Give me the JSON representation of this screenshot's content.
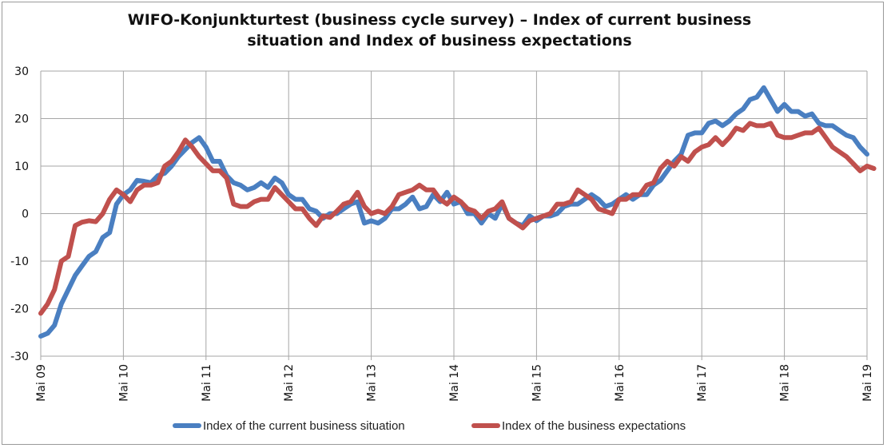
{
  "chart_data": {
    "type": "line",
    "title_lines": [
      "WIFO-Konjunkturtest (business cycle survey) – Index of current business",
      "situation and Index of business expectations"
    ],
    "ylim": [
      -30,
      30
    ],
    "yticks": [
      30,
      20,
      10,
      0,
      -10,
      -20,
      -30
    ],
    "xticks": [
      "Mai 09",
      "Mai 10",
      "Mai 11",
      "Mai 12",
      "Mai 13",
      "Mai 14",
      "Mai 15",
      "Mai 16",
      "Mai 17",
      "Mai 18",
      "Mai 19"
    ],
    "grid": true,
    "legend_position": "bottom",
    "series": [
      {
        "name": "Index of the current business situation",
        "color": "#4a7fc1",
        "points": [
          [
            "2009-05",
            -25.8
          ],
          [
            "2009-06",
            -25.2
          ],
          [
            "2009-07",
            -23.5
          ],
          [
            "2009-08",
            -19
          ],
          [
            "2009-09",
            -16
          ],
          [
            "2009-10",
            -13
          ],
          [
            "2009-11",
            -11
          ],
          [
            "2009-12",
            -9
          ],
          [
            "2010-01",
            -8
          ],
          [
            "2010-02",
            -5
          ],
          [
            "2010-03",
            -4
          ],
          [
            "2010-04",
            2
          ],
          [
            "2010-05",
            4
          ],
          [
            "2010-06",
            5
          ],
          [
            "2010-07",
            7
          ],
          [
            "2010-08",
            6.8
          ],
          [
            "2010-09",
            6.5
          ],
          [
            "2010-10",
            8
          ],
          [
            "2010-11",
            8.5
          ],
          [
            "2010-12",
            10
          ],
          [
            "2011-01",
            12
          ],
          [
            "2011-02",
            13.5
          ],
          [
            "2011-03",
            15
          ],
          [
            "2011-04",
            16
          ],
          [
            "2011-05",
            14
          ],
          [
            "2011-06",
            11
          ],
          [
            "2011-07",
            11
          ],
          [
            "2011-08",
            8
          ],
          [
            "2011-09",
            6.5
          ],
          [
            "2011-10",
            6
          ],
          [
            "2011-11",
            5
          ],
          [
            "2011-12",
            5.5
          ],
          [
            "2012-01",
            6.5
          ],
          [
            "2012-02",
            5.5
          ],
          [
            "2012-03",
            7.5
          ],
          [
            "2012-04",
            6.5
          ],
          [
            "2012-05",
            4
          ],
          [
            "2012-06",
            3
          ],
          [
            "2012-07",
            3
          ],
          [
            "2012-08",
            1
          ],
          [
            "2012-09",
            0.5
          ],
          [
            "2012-10",
            -1
          ],
          [
            "2012-11",
            0
          ],
          [
            "2012-12",
            0
          ],
          [
            "2013-01",
            1
          ],
          [
            "2013-02",
            2
          ],
          [
            "2013-03",
            2.5
          ],
          [
            "2013-04",
            -2
          ],
          [
            "2013-05",
            -1.5
          ],
          [
            "2013-06",
            -2
          ],
          [
            "2013-07",
            -1
          ],
          [
            "2013-08",
            1
          ],
          [
            "2013-09",
            1
          ],
          [
            "2013-10",
            2
          ],
          [
            "2013-11",
            3.5
          ],
          [
            "2013-12",
            1
          ],
          [
            "2014-01",
            1.5
          ],
          [
            "2014-02",
            4
          ],
          [
            "2014-03",
            2.5
          ],
          [
            "2014-04",
            4.5
          ],
          [
            "2014-05",
            2
          ],
          [
            "2014-06",
            2.5
          ],
          [
            "2014-07",
            0
          ],
          [
            "2014-08",
            0
          ],
          [
            "2014-09",
            -2
          ],
          [
            "2014-10",
            0
          ],
          [
            "2014-11",
            -1
          ],
          [
            "2014-12",
            2
          ],
          [
            "2015-01",
            -1
          ],
          [
            "2015-02",
            -2
          ],
          [
            "2015-03",
            -2.5
          ],
          [
            "2015-04",
            -0.5
          ],
          [
            "2015-05",
            -1.5
          ],
          [
            "2015-06",
            -0.5
          ],
          [
            "2015-07",
            -0.5
          ],
          [
            "2015-08",
            0
          ],
          [
            "2015-09",
            1.5
          ],
          [
            "2015-10",
            2
          ],
          [
            "2015-11",
            2
          ],
          [
            "2015-12",
            3
          ],
          [
            "2016-01",
            4
          ],
          [
            "2016-02",
            3
          ],
          [
            "2016-03",
            1.5
          ],
          [
            "2016-04",
            2
          ],
          [
            "2016-05",
            3
          ],
          [
            "2016-06",
            4
          ],
          [
            "2016-07",
            3
          ],
          [
            "2016-08",
            4
          ],
          [
            "2016-09",
            4
          ],
          [
            "2016-10",
            6
          ],
          [
            "2016-11",
            7
          ],
          [
            "2016-12",
            9
          ],
          [
            "2017-01",
            11
          ],
          [
            "2017-02",
            12.5
          ],
          [
            "2017-03",
            16.5
          ],
          [
            "2017-04",
            17
          ],
          [
            "2017-05",
            17
          ],
          [
            "2017-06",
            19
          ],
          [
            "2017-07",
            19.5
          ],
          [
            "2017-08",
            18.5
          ],
          [
            "2017-09",
            19.5
          ],
          [
            "2017-10",
            21
          ],
          [
            "2017-11",
            22
          ],
          [
            "2017-12",
            24
          ],
          [
            "2018-01",
            24.5
          ],
          [
            "2018-02",
            26.5
          ],
          [
            "2018-03",
            24
          ],
          [
            "2018-04",
            21.5
          ],
          [
            "2018-05",
            23
          ],
          [
            "2018-06",
            21.5
          ],
          [
            "2018-07",
            21.5
          ],
          [
            "2018-08",
            20.5
          ],
          [
            "2018-09",
            21
          ],
          [
            "2018-10",
            19
          ],
          [
            "2018-11",
            18.5
          ],
          [
            "2018-12",
            18.5
          ],
          [
            "2019-01",
            17.5
          ],
          [
            "2019-02",
            16.5
          ],
          [
            "2019-03",
            16
          ],
          [
            "2019-04",
            14
          ],
          [
            "2019-05",
            12.5
          ]
        ]
      },
      {
        "name": "Index of the business expectations",
        "color": "#c0504d",
        "points": [
          [
            "2009-05",
            -21
          ],
          [
            "2009-06",
            -19
          ],
          [
            "2009-07",
            -16
          ],
          [
            "2009-08",
            -10
          ],
          [
            "2009-09",
            -9
          ],
          [
            "2009-10",
            -2.5
          ],
          [
            "2009-11",
            -1.8
          ],
          [
            "2009-12",
            -1.5
          ],
          [
            "2010-01",
            -1.7
          ],
          [
            "2010-02",
            0
          ],
          [
            "2010-03",
            3
          ],
          [
            "2010-04",
            5
          ],
          [
            "2010-05",
            4
          ],
          [
            "2010-06",
            2.5
          ],
          [
            "2010-07",
            5
          ],
          [
            "2010-08",
            6
          ],
          [
            "2010-09",
            6
          ],
          [
            "2010-10",
            6.5
          ],
          [
            "2010-11",
            10
          ],
          [
            "2010-12",
            11
          ],
          [
            "2011-01",
            13
          ],
          [
            "2011-02",
            15.5
          ],
          [
            "2011-03",
            14
          ],
          [
            "2011-04",
            12
          ],
          [
            "2011-05",
            10.5
          ],
          [
            "2011-06",
            9
          ],
          [
            "2011-07",
            9
          ],
          [
            "2011-08",
            7.5
          ],
          [
            "2011-09",
            2
          ],
          [
            "2011-10",
            1.5
          ],
          [
            "2011-11",
            1.5
          ],
          [
            "2011-12",
            2.5
          ],
          [
            "2012-01",
            3
          ],
          [
            "2012-02",
            3
          ],
          [
            "2012-03",
            5.5
          ],
          [
            "2012-04",
            4
          ],
          [
            "2012-05",
            2.5
          ],
          [
            "2012-06",
            1
          ],
          [
            "2012-07",
            1
          ],
          [
            "2012-08",
            -1
          ],
          [
            "2012-09",
            -2.5
          ],
          [
            "2012-10",
            -0.5
          ],
          [
            "2012-11",
            -0.8
          ],
          [
            "2012-12",
            0.5
          ],
          [
            "2013-01",
            2
          ],
          [
            "2013-02",
            2.5
          ],
          [
            "2013-03",
            4.5
          ],
          [
            "2013-04",
            1.5
          ],
          [
            "2013-05",
            0
          ],
          [
            "2013-06",
            0.5
          ],
          [
            "2013-07",
            0
          ],
          [
            "2013-08",
            1.5
          ],
          [
            "2013-09",
            4
          ],
          [
            "2013-10",
            4.5
          ],
          [
            "2013-11",
            5
          ],
          [
            "2013-12",
            6
          ],
          [
            "2014-01",
            5
          ],
          [
            "2014-02",
            5
          ],
          [
            "2014-03",
            3
          ],
          [
            "2014-04",
            2
          ],
          [
            "2014-05",
            3.5
          ],
          [
            "2014-06",
            2.5
          ],
          [
            "2014-07",
            1
          ],
          [
            "2014-08",
            0.5
          ],
          [
            "2014-09",
            -1
          ],
          [
            "2014-10",
            0.5
          ],
          [
            "2014-11",
            1
          ],
          [
            "2014-12",
            2.5
          ],
          [
            "2015-01",
            -1
          ],
          [
            "2015-02",
            -2
          ],
          [
            "2015-03",
            -3
          ],
          [
            "2015-04",
            -1.5
          ],
          [
            "2015-05",
            -1
          ],
          [
            "2015-06",
            -0.5
          ],
          [
            "2015-07",
            0
          ],
          [
            "2015-08",
            2
          ],
          [
            "2015-09",
            2
          ],
          [
            "2015-10",
            2.5
          ],
          [
            "2015-11",
            5
          ],
          [
            "2015-12",
            4
          ],
          [
            "2016-01",
            3
          ],
          [
            "2016-02",
            1
          ],
          [
            "2016-03",
            0.5
          ],
          [
            "2016-04",
            0
          ],
          [
            "2016-05",
            3
          ],
          [
            "2016-06",
            3
          ],
          [
            "2016-07",
            4
          ],
          [
            "2016-08",
            4
          ],
          [
            "2016-09",
            6
          ],
          [
            "2016-10",
            6.5
          ],
          [
            "2016-11",
            9.5
          ],
          [
            "2016-12",
            11
          ],
          [
            "2017-01",
            10
          ],
          [
            "2017-02",
            12
          ],
          [
            "2017-03",
            11
          ],
          [
            "2017-04",
            13
          ],
          [
            "2017-05",
            14
          ],
          [
            "2017-06",
            14.5
          ],
          [
            "2017-07",
            16
          ],
          [
            "2017-08",
            14.5
          ],
          [
            "2017-09",
            16
          ],
          [
            "2017-10",
            18
          ],
          [
            "2017-11",
            17.5
          ],
          [
            "2017-12",
            19
          ],
          [
            "2018-01",
            18.5
          ],
          [
            "2018-02",
            18.5
          ],
          [
            "2018-03",
            19
          ],
          [
            "2018-04",
            16.5
          ],
          [
            "2018-05",
            16
          ],
          [
            "2018-06",
            16
          ],
          [
            "2018-07",
            16.5
          ],
          [
            "2018-08",
            17
          ],
          [
            "2018-09",
            17
          ],
          [
            "2018-10",
            18
          ],
          [
            "2018-11",
            16
          ],
          [
            "2018-12",
            14
          ],
          [
            "2019-01",
            13
          ],
          [
            "2019-02",
            12
          ],
          [
            "2019-03",
            10.5
          ],
          [
            "2019-04",
            9
          ],
          [
            "2019-05",
            10
          ],
          [
            "2019-06",
            9.5
          ]
        ]
      }
    ]
  }
}
